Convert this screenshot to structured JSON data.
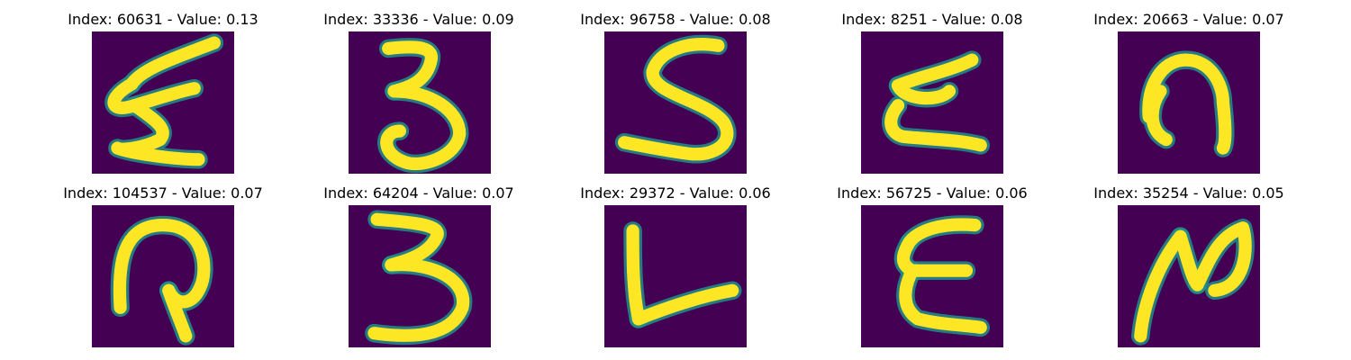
{
  "colors": {
    "background": "#440154",
    "stroke": "#fde725",
    "halo": "#21918c"
  },
  "panels": [
    {
      "title": "Index: 60631 - Value: 0.13",
      "glyph": "E-script"
    },
    {
      "title": "Index: 33336 - Value: 0.09",
      "glyph": "3"
    },
    {
      "title": "Index: 96758 - Value: 0.08",
      "glyph": "S"
    },
    {
      "title": "Index: 8251 - Value: 0.08",
      "glyph": "E-slanted"
    },
    {
      "title": "Index: 20663 - Value: 0.07",
      "glyph": "n-blob"
    },
    {
      "title": "Index: 104537 - Value: 0.07",
      "glyph": "q-loop"
    },
    {
      "title": "Index: 64204 - Value: 0.07",
      "glyph": "3-block"
    },
    {
      "title": "Index: 29372 - Value: 0.06",
      "glyph": "L"
    },
    {
      "title": "Index: 56725 - Value: 0.06",
      "glyph": "E"
    },
    {
      "title": "Index: 35254 - Value: 0.05",
      "glyph": "N-script"
    }
  ]
}
